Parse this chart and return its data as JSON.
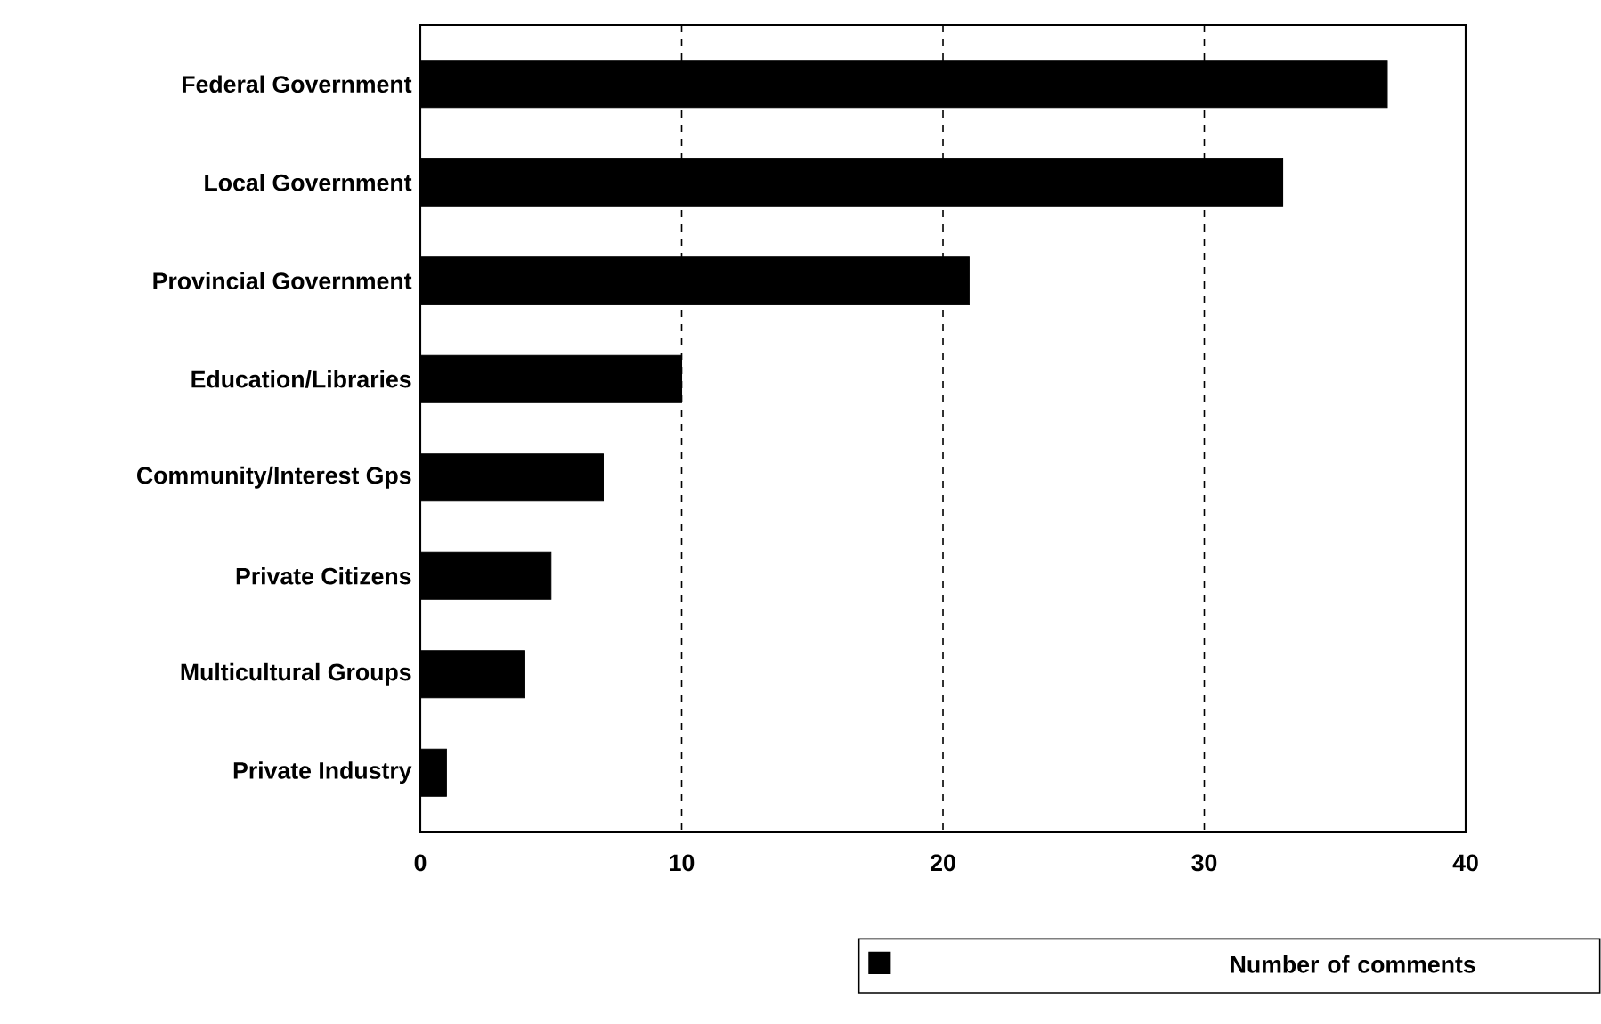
{
  "chart_data": {
    "type": "bar",
    "orientation": "horizontal",
    "categories": [
      "Federal Government",
      "Local Government",
      "Provincial Government",
      "Education/Libraries",
      "Community/Interest Gps",
      "Private Citizens",
      "Multicultural Groups",
      "Private Industry"
    ],
    "series": [
      {
        "name": "Number of comments",
        "color": "#000000",
        "values": [
          37,
          33,
          21,
          10,
          7,
          5,
          4,
          1
        ]
      }
    ],
    "xlim": [
      0,
      40
    ],
    "xticks": [
      0,
      10,
      20,
      30,
      40
    ],
    "grid": "x",
    "legend": "bottom right"
  }
}
